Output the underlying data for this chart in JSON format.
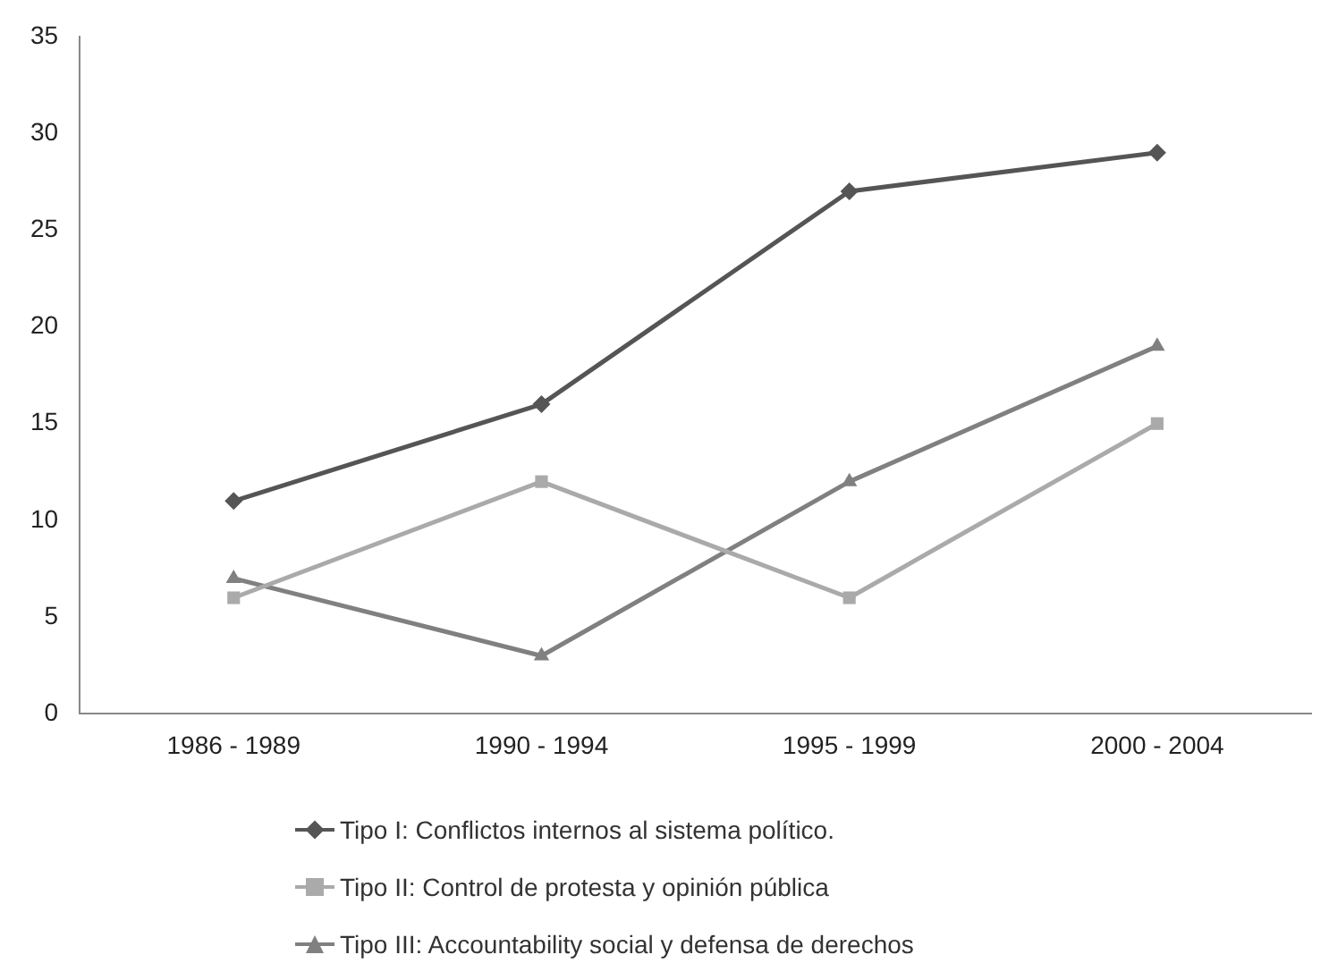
{
  "chart_data": {
    "type": "line",
    "categories": [
      "1986 - 1989",
      "1990 - 1994",
      "1995 - 1999",
      "2000 - 2004"
    ],
    "series": [
      {
        "name": "Tipo I: Conflictos internos al sistema político.",
        "color": "#555555",
        "marker": "diamond",
        "values": [
          11,
          16,
          27,
          29
        ]
      },
      {
        "name": "Tipo II: Control de protesta y opinión pública",
        "color": "#aaaaaa",
        "marker": "square",
        "values": [
          6,
          12,
          6,
          15
        ]
      },
      {
        "name": "Tipo III: Accountability social y defensa de derechos",
        "color": "#808080",
        "marker": "triangle",
        "values": [
          7,
          3,
          12,
          19
        ]
      }
    ],
    "ylim": [
      0,
      35
    ],
    "yticks": [
      0,
      5,
      10,
      15,
      20,
      25,
      30,
      35
    ],
    "grid": false,
    "legend": "bottom",
    "line_style": "solid"
  }
}
